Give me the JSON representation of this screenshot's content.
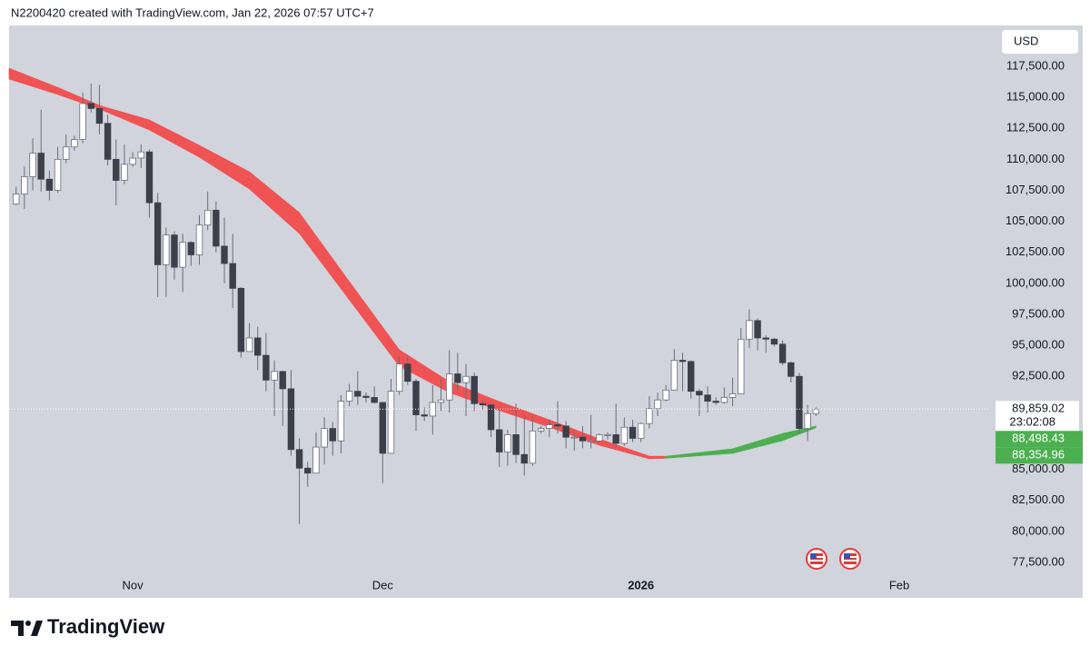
{
  "header": "N2200420 created with TradingView.com, Jan 22, 2026 07:57 UTC+7",
  "footer": {
    "brand": "TradingView"
  },
  "currency": "USD",
  "chart_data": {
    "type": "candlestick",
    "xlim": [
      -0.84,
      116.9
    ],
    "xticks": [
      {
        "value": 14,
        "label": "Nov"
      },
      {
        "value": 44,
        "label": "Dec"
      },
      {
        "value": 75,
        "label": "2026",
        "weight": "bold"
      },
      {
        "value": 106,
        "label": "Feb"
      }
    ],
    "ylim": [
      74643,
      120797
    ],
    "yticks": [
      {
        "value": 77500,
        "label": "77,500.00"
      },
      {
        "value": 80000,
        "label": "80,000.00"
      },
      {
        "value": 82500,
        "label": "82,500.00"
      },
      {
        "value": 85000,
        "label": "85,000.00"
      },
      {
        "value": 87500,
        "label": "87,500.00"
      },
      {
        "value": 90000,
        "label": "90,000.00"
      },
      {
        "value": 92500,
        "label": "92,500.00"
      },
      {
        "value": 95000,
        "label": "95,000.00"
      },
      {
        "value": 97500,
        "label": "97,500.00"
      },
      {
        "value": 100000,
        "label": "100,000.00"
      },
      {
        "value": 102500,
        "label": "102,500.00"
      },
      {
        "value": 105000,
        "label": "105,000.00"
      },
      {
        "value": 107500,
        "label": "107,500.00"
      },
      {
        "value": 110000,
        "label": "110,000.00"
      },
      {
        "value": 112500,
        "label": "112,500.00"
      },
      {
        "value": 115000,
        "label": "115,000.00"
      },
      {
        "value": 117500,
        "label": "117,500.00"
      }
    ],
    "grid": false,
    "up_color": "#ffffff",
    "down_color": "#3d404b",
    "wick_color": "#6a6d78",
    "open": [
      106400,
      107200,
      108600,
      110500,
      108400,
      107500,
      110000,
      111000,
      111600,
      114500,
      114100,
      112900,
      110000,
      108300,
      109600,
      110100,
      110600,
      106500,
      101500,
      103900,
      101300,
      103300,
      102300,
      104700,
      105900,
      103000,
      101600,
      99600,
      94500,
      95600,
      94200,
      92200,
      92900,
      91500,
      86600,
      85100,
      84700,
      86800,
      88300,
      87300,
      90500,
      91300,
      90900,
      90800,
      90400,
      86300,
      91300,
      93500,
      92100,
      89400,
      89300,
      90400,
      90600,
      92700,
      92000,
      92500,
      90300,
      90200,
      88200,
      86400,
      87800,
      86200,
      85500,
      88100,
      88300,
      88600,
      88500,
      87600,
      87600,
      87300,
      87300,
      87800,
      87800,
      87100,
      88400,
      87500,
      88700,
      89900,
      90600,
      91400,
      93800,
      93700,
      91300,
      91000,
      90500,
      90400,
      90800,
      91100,
      95500,
      97000,
      95600,
      95500,
      95100,
      93600,
      92500,
      88300,
      89500
    ],
    "high": [
      107800,
      109400,
      111700,
      114000,
      109100,
      111000,
      112000,
      111900,
      115400,
      116100,
      116000,
      113600,
      111600,
      111200,
      110600,
      111200,
      110800,
      107300,
      104500,
      104200,
      104000,
      103400,
      105500,
      107400,
      106600,
      105300,
      104000,
      99700,
      96800,
      96500,
      96000,
      93800,
      92900,
      93000,
      87500,
      85600,
      88000,
      89200,
      88800,
      91000,
      91900,
      92900,
      91200,
      91700,
      90400,
      92300,
      94100,
      94100,
      92300,
      90000,
      91800,
      92300,
      94600,
      94400,
      93500,
      92800,
      90600,
      90300,
      90000,
      88200,
      90300,
      89400,
      89300,
      88500,
      89000,
      90500,
      88900,
      88000,
      88500,
      89400,
      87900,
      88000,
      90300,
      89200,
      89000,
      88800,
      90900,
      91200,
      91800,
      94700,
      94400,
      93800,
      91500,
      91700,
      90800,
      91600,
      92400,
      96400,
      97900,
      97200,
      95800,
      95600,
      95400,
      93700,
      92800,
      90200,
      90000
    ],
    "low": [
      106300,
      106000,
      107500,
      107400,
      106700,
      107300,
      109700,
      110700,
      111300,
      113800,
      112000,
      109500,
      106300,
      108000,
      109400,
      109300,
      105300,
      98900,
      98900,
      100300,
      99300,
      101400,
      101500,
      104300,
      102500,
      100000,
      98000,
      94000,
      94500,
      93000,
      91300,
      89300,
      88500,
      86100,
      80600,
      83600,
      84700,
      85400,
      86100,
      86300,
      90100,
      90200,
      90400,
      90300,
      83900,
      86300,
      91000,
      91800,
      88100,
      88900,
      87800,
      89700,
      89600,
      91300,
      89300,
      89700,
      89800,
      87600,
      85200,
      85300,
      85500,
      84500,
      85300,
      87900,
      87600,
      87900,
      86700,
      86500,
      86700,
      86700,
      87300,
      87400,
      86800,
      86900,
      87200,
      87200,
      88300,
      89300,
      90500,
      91400,
      91300,
      90700,
      89300,
      89600,
      90200,
      90300,
      90100,
      91100,
      94800,
      94600,
      94400,
      94900,
      93400,
      92000,
      87900,
      87300,
      89300
    ],
    "close": [
      107200,
      108600,
      110500,
      108400,
      107500,
      110000,
      111000,
      111600,
      114500,
      114100,
      112900,
      110000,
      108300,
      109600,
      110100,
      110600,
      106500,
      101500,
      103900,
      101300,
      103300,
      102300,
      104700,
      105900,
      103000,
      101600,
      99600,
      94500,
      95600,
      94200,
      92200,
      92900,
      91500,
      86600,
      85100,
      84700,
      86800,
      88300,
      87300,
      90500,
      91300,
      90900,
      90800,
      90400,
      86300,
      91300,
      93500,
      92100,
      89400,
      89300,
      90400,
      90600,
      92700,
      92000,
      92500,
      90300,
      90200,
      88200,
      86400,
      87800,
      86200,
      85500,
      88100,
      88300,
      88600,
      88500,
      87600,
      87600,
      87300,
      87300,
      87800,
      87800,
      87100,
      88400,
      87500,
      88700,
      89900,
      90600,
      91400,
      93800,
      93700,
      91300,
      91000,
      90500,
      90400,
      90800,
      91100,
      95500,
      97000,
      95600,
      95500,
      95100,
      93600,
      92500,
      88300,
      89500,
      89859.02
    ],
    "last_price": {
      "value": 89859.02,
      "label": "89,859.02",
      "countdown": "23:02:08"
    },
    "ribbon": {
      "x": [
        -0.84,
        5,
        10,
        16,
        22,
        28,
        34,
        40,
        46,
        52,
        58,
        64,
        70,
        76,
        78,
        86,
        92,
        96
      ],
      "upper": [
        117350,
        115800,
        114350,
        113180,
        111130,
        109000,
        105700,
        100140,
        94640,
        92080,
        90470,
        89000,
        87460,
        86070,
        86060,
        86660,
        87900,
        88498.43
      ],
      "lower": [
        116470,
        115230,
        114060,
        112370,
        110170,
        107610,
        104020,
        98670,
        93320,
        91200,
        89740,
        88410,
        86950,
        85850,
        85900,
        86290,
        87320,
        88354.96
      ],
      "colors": [
        "#f05353",
        "#f05353",
        "#f05353",
        "#f05353",
        "#f05353",
        "#f05353",
        "#f05353",
        "#f05353",
        "#f05353",
        "#f05353",
        "#f05353",
        "#f05353",
        "#f05353",
        "#f05353",
        "#4caf50",
        "#4caf50",
        "#4caf50"
      ],
      "upper_label": "88,498.43",
      "lower_label": "88,354.96",
      "label_color": "#4caf50"
    }
  }
}
